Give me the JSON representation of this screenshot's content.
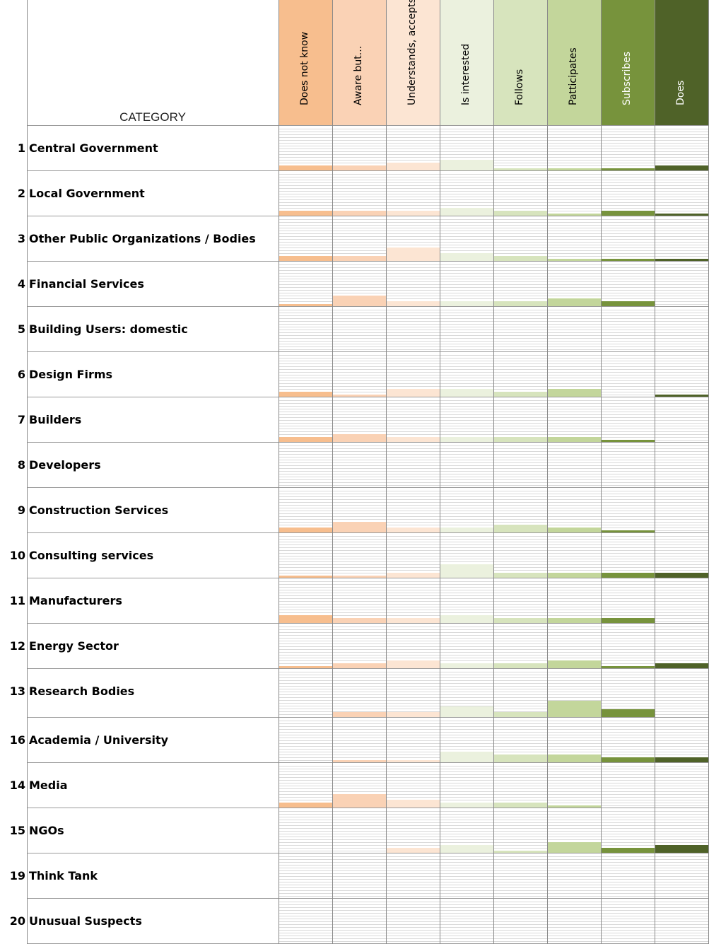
{
  "chart_data": {
    "type": "heatmap",
    "title": "",
    "row_header": "CATEGORY",
    "columns": [
      {
        "label": "Does not know",
        "color": "#F7BE8E",
        "text_color": "#000000"
      },
      {
        "label": "Aware but...",
        "color": "#FAD2B5",
        "text_color": "#000000"
      },
      {
        "label": "Understands, accepts",
        "color": "#FCE5D3",
        "text_color": "#000000"
      },
      {
        "label": "Is interested",
        "color": "#EBF1DE",
        "text_color": "#000000"
      },
      {
        "label": "Follows",
        "color": "#D7E4BD",
        "text_color": "#000000"
      },
      {
        "label": "Patticipates",
        "color": "#C3D69B",
        "text_color": "#000000"
      },
      {
        "label": "Subscribes",
        "color": "#77933C",
        "text_color": "#FFFFFF"
      },
      {
        "label": "Does",
        "color": "#4F6228",
        "text_color": "#FFFFFF"
      }
    ],
    "rows": [
      {
        "num": "1",
        "label": "Central Government",
        "values": [
          2,
          2,
          3,
          4,
          1,
          1,
          1,
          2
        ]
      },
      {
        "num": "2",
        "label": "Local Government",
        "values": [
          2,
          2,
          2,
          3,
          2,
          1,
          2,
          1
        ]
      },
      {
        "num": "3",
        "label": "Other Public Organizations / Bodies",
        "values": [
          2,
          2,
          5,
          3,
          2,
          1,
          1,
          1
        ]
      },
      {
        "num": "4",
        "label": "Financial Services",
        "values": [
          1,
          4,
          2,
          2,
          2,
          3,
          2,
          0
        ]
      },
      {
        "num": "5",
        "label": "Building Users: domestic",
        "values": [
          0,
          0,
          0,
          0,
          0,
          0,
          0,
          0
        ]
      },
      {
        "num": "6",
        "label": "Design Firms",
        "values": [
          2,
          1,
          3,
          3,
          2,
          3,
          0,
          1
        ]
      },
      {
        "num": "7",
        "label": "Builders",
        "values": [
          2,
          3,
          2,
          2,
          2,
          2,
          1,
          0
        ]
      },
      {
        "num": "8",
        "label": "Developers",
        "values": [
          0,
          0,
          0,
          0,
          0,
          0,
          0,
          0
        ]
      },
      {
        "num": "9",
        "label": "Construction Services",
        "values": [
          2,
          4,
          2,
          2,
          3,
          2,
          1,
          0
        ]
      },
      {
        "num": "10",
        "label": "Consulting services",
        "values": [
          1,
          1,
          2,
          5,
          2,
          2,
          2,
          2
        ]
      },
      {
        "num": "11",
        "label": "Manufacturers",
        "values": [
          3,
          2,
          2,
          3,
          2,
          2,
          2,
          0
        ]
      },
      {
        "num": "12",
        "label": "Energy Sector",
        "values": [
          1,
          2,
          3,
          2,
          2,
          3,
          1,
          2
        ]
      },
      {
        "num": "13",
        "label": "Research Bodies",
        "values": [
          0,
          2,
          2,
          4,
          2,
          6,
          3,
          0
        ]
      },
      {
        "num": "16",
        "label": "Academia / University",
        "values": [
          0,
          1,
          1,
          4,
          3,
          3,
          2,
          2
        ]
      },
      {
        "num": "14",
        "label": "Media",
        "values": [
          2,
          5,
          3,
          2,
          2,
          1,
          0,
          0
        ]
      },
      {
        "num": "15",
        "label": "NGOs",
        "values": [
          0,
          0,
          2,
          3,
          1,
          4,
          2,
          3
        ]
      },
      {
        "num": "19",
        "label": "Think Tank",
        "values": [
          0,
          0,
          0,
          0,
          0,
          0,
          0,
          0
        ]
      },
      {
        "num": "20",
        "label": "Unusual Suspects",
        "values": [
          0,
          0,
          0,
          0,
          0,
          0,
          0,
          0
        ]
      }
    ]
  }
}
